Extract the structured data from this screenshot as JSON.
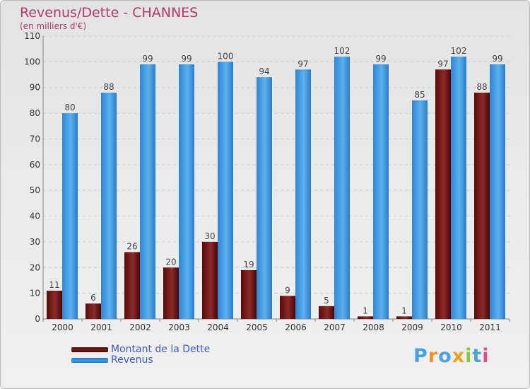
{
  "chart_data": {
    "type": "bar",
    "title": "Revenus/Dette - CHANNES",
    "subtitle": "(en milliers d'€)",
    "xlabel": "",
    "ylabel": "",
    "ylim": [
      0,
      110
    ],
    "yticks": [
      0,
      10,
      20,
      30,
      40,
      50,
      60,
      70,
      80,
      90,
      100,
      110
    ],
    "grid": true,
    "categories": [
      "2000",
      "2001",
      "2002",
      "2003",
      "2004",
      "2005",
      "2006",
      "2007",
      "2008",
      "2009",
      "2010",
      "2011"
    ],
    "series": [
      {
        "name": "Montant de la Dette",
        "color": "#7a1c1c",
        "values": [
          11,
          6,
          26,
          20,
          30,
          19,
          9,
          5,
          1,
          1,
          97,
          88
        ]
      },
      {
        "name": "Revenus",
        "color": "#3d9ee3",
        "values": [
          80,
          88,
          99,
          99,
          100,
          94,
          97,
          102,
          99,
          85,
          102,
          99
        ]
      }
    ]
  },
  "legend": {
    "items": [
      {
        "label": "Montant de la Dette",
        "color": "#7a1c1c"
      },
      {
        "label": "Revenus",
        "color": "#3d9ee3"
      }
    ]
  },
  "brand": {
    "text": "Proxiti",
    "colors": [
      "#4aa3df",
      "#f0922b",
      "#4aa3df",
      "#e8a21c",
      "#8cc63f",
      "#4aa3df",
      "#e04b8f"
    ]
  }
}
